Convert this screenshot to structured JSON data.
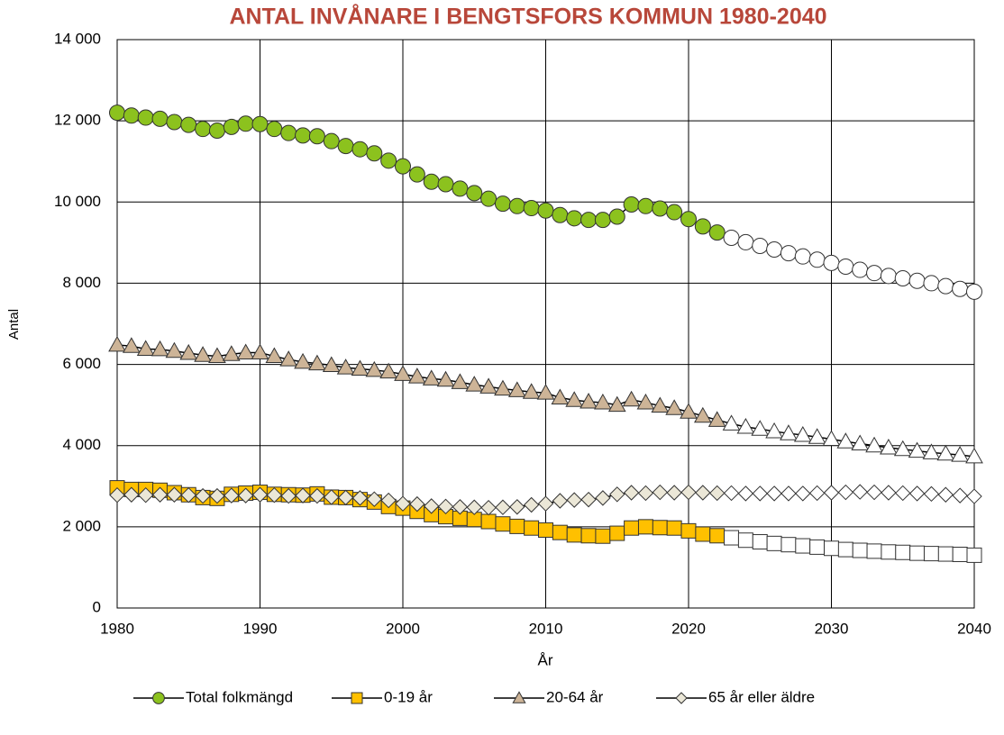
{
  "chart_data": {
    "type": "line",
    "title": "ANTAL INVÅNARE I BENGTSFORS KOMMUN 1980-2040",
    "x_label": "År",
    "y_label": "Antal",
    "x": [
      1980,
      1981,
      1982,
      1983,
      1984,
      1985,
      1986,
      1987,
      1988,
      1989,
      1990,
      1991,
      1992,
      1993,
      1994,
      1995,
      1996,
      1997,
      1998,
      1999,
      2000,
      2001,
      2002,
      2003,
      2004,
      2005,
      2006,
      2007,
      2008,
      2009,
      2010,
      2011,
      2012,
      2013,
      2014,
      2015,
      2016,
      2017,
      2018,
      2019,
      2020,
      2021,
      2022,
      2023,
      2024,
      2025,
      2026,
      2027,
      2028,
      2029,
      2030,
      2031,
      2032,
      2033,
      2034,
      2035,
      2036,
      2037,
      2038,
      2039,
      2040
    ],
    "projection_from": 2023,
    "projection_color": "#ffffff",
    "series": [
      {
        "name": "Total folkmängd",
        "color": "#8cc21e",
        "marker": "circle",
        "values": [
          12200,
          12130,
          12080,
          12050,
          11970,
          11900,
          11800,
          11760,
          11850,
          11930,
          11920,
          11800,
          11700,
          11640,
          11620,
          11500,
          11380,
          11300,
          11200,
          11020,
          10880,
          10680,
          10500,
          10440,
          10330,
          10220,
          10080,
          9960,
          9900,
          9850,
          9790,
          9680,
          9600,
          9560,
          9560,
          9640,
          9940,
          9900,
          9840,
          9750,
          9580,
          9400,
          9250,
          9120,
          9010,
          8920,
          8830,
          8740,
          8660,
          8580,
          8500,
          8410,
          8330,
          8250,
          8180,
          8120,
          8060,
          8000,
          7930,
          7860,
          7790
        ]
      },
      {
        "name": "0-19 år",
        "color": "#ffc000",
        "marker": "square",
        "values": [
          2960,
          2920,
          2920,
          2900,
          2840,
          2790,
          2720,
          2700,
          2800,
          2830,
          2850,
          2800,
          2790,
          2780,
          2810,
          2730,
          2720,
          2670,
          2610,
          2500,
          2460,
          2380,
          2300,
          2250,
          2210,
          2180,
          2130,
          2070,
          2010,
          1970,
          1920,
          1860,
          1800,
          1780,
          1770,
          1840,
          1970,
          2000,
          1980,
          1970,
          1900,
          1820,
          1780,
          1730,
          1670,
          1630,
          1590,
          1560,
          1530,
          1500,
          1470,
          1440,
          1420,
          1400,
          1380,
          1370,
          1350,
          1340,
          1330,
          1320,
          1300
        ]
      },
      {
        "name": "20-64 år",
        "color": "#cdb497",
        "marker": "triangle",
        "values": [
          6480,
          6450,
          6380,
          6370,
          6330,
          6280,
          6230,
          6200,
          6250,
          6290,
          6290,
          6200,
          6120,
          6060,
          6020,
          5980,
          5920,
          5890,
          5860,
          5820,
          5760,
          5700,
          5650,
          5620,
          5560,
          5500,
          5450,
          5400,
          5360,
          5320,
          5300,
          5180,
          5120,
          5080,
          5060,
          5000,
          5130,
          5060,
          4980,
          4920,
          4830,
          4730,
          4630,
          4540,
          4460,
          4410,
          4350,
          4300,
          4260,
          4210,
          4160,
          4100,
          4050,
          4000,
          3950,
          3910,
          3870,
          3830,
          3800,
          3770,
          3730
        ]
      },
      {
        "name": "65 år eller äldre",
        "color": "#ebe7d7",
        "marker": "diamond",
        "values": [
          2780,
          2790,
          2780,
          2790,
          2790,
          2780,
          2760,
          2760,
          2770,
          2770,
          2790,
          2780,
          2760,
          2770,
          2760,
          2730,
          2720,
          2710,
          2680,
          2650,
          2570,
          2560,
          2510,
          2500,
          2490,
          2480,
          2470,
          2480,
          2490,
          2540,
          2570,
          2640,
          2660,
          2670,
          2710,
          2800,
          2840,
          2830,
          2850,
          2840,
          2850,
          2840,
          2830,
          2830,
          2820,
          2820,
          2820,
          2820,
          2820,
          2830,
          2840,
          2850,
          2860,
          2850,
          2840,
          2830,
          2820,
          2810,
          2790,
          2770,
          2750
        ]
      }
    ],
    "xlim": [
      1980,
      2040
    ],
    "xticks": [
      1980,
      1990,
      2000,
      2010,
      2020,
      2030,
      2040
    ],
    "ylim": [
      0,
      14000
    ],
    "yticks": [
      0,
      {
        "value": 2000,
        "label": "2 000"
      },
      {
        "value": 4000,
        "label": "4 000"
      },
      {
        "value": 6000,
        "label": "6 000"
      },
      {
        "value": 8000,
        "label": "8 000"
      },
      {
        "value": 10000,
        "label": "10 000"
      },
      {
        "value": 12000,
        "label": "12 000"
      },
      {
        "value": 14000,
        "label": "14 000"
      }
    ],
    "grid": true,
    "legend": "bottom"
  }
}
